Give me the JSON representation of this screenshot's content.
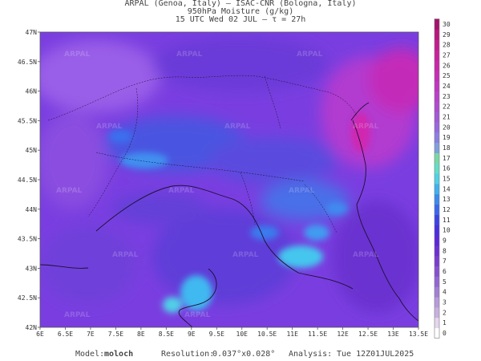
{
  "header": {
    "line1": "ARPAL (Genoa, Italy)  –  ISAC-CNR (Bologna, Italy)",
    "line2": "950hPa Moisture (g/kg)",
    "line3": "15 UTC Wed 02 JUL  –  τ = 27h"
  },
  "map": {
    "lon_ticks": [
      "6E",
      "6.5E",
      "7E",
      "7.5E",
      "8E",
      "8.5E",
      "9E",
      "9.5E",
      "10E",
      "10.5E",
      "11E",
      "11.5E",
      "12E",
      "12.5E",
      "13E",
      "13.5E"
    ],
    "lat_ticks": [
      "47N",
      "46.5N",
      "46N",
      "45.5N",
      "45N",
      "44.5N",
      "44N",
      "43.5N",
      "43N",
      "42.5N",
      "42N"
    ],
    "watermark": "ARPAL"
  },
  "colorbar": {
    "levels": [
      "0",
      "1",
      "2",
      "3",
      "4",
      "5",
      "6",
      "7",
      "8",
      "9",
      "10",
      "11",
      "12",
      "13",
      "14",
      "15",
      "16",
      "17",
      "18",
      "19",
      "20",
      "21",
      "22",
      "23",
      "24",
      "25",
      "26",
      "27",
      "28",
      "29",
      "30"
    ],
    "colors": [
      "#ffffff",
      "#e3d7ee",
      "#c8b1e1",
      "#b79bdc",
      "#a27fd6",
      "#9466d4",
      "#8750d3",
      "#7a3cd3",
      "#6d2ed6",
      "#5b27dc",
      "#4a2ee3",
      "#3b44e8",
      "#3a67ee",
      "#3a8bf2",
      "#3fb1f2",
      "#4fd2e8",
      "#61e0c6",
      "#78d9a5",
      "#7fa0dd",
      "#8a7fe3",
      "#9868df",
      "#a557da",
      "#b04ad4",
      "#bb3fcc",
      "#c234c3",
      "#c82bb8",
      "#cc24ac",
      "#cd1f9f",
      "#c71a8f",
      "#bb157e",
      "#a8106b"
    ]
  },
  "footer": {
    "model_label": "Model:",
    "model_value": "moloch",
    "resolution_label": "Resolution:",
    "resolution_value": "0.037°x0.028°",
    "analysis_label": "Analysis:",
    "analysis_value": "Tue 12Z01JUL2025"
  }
}
